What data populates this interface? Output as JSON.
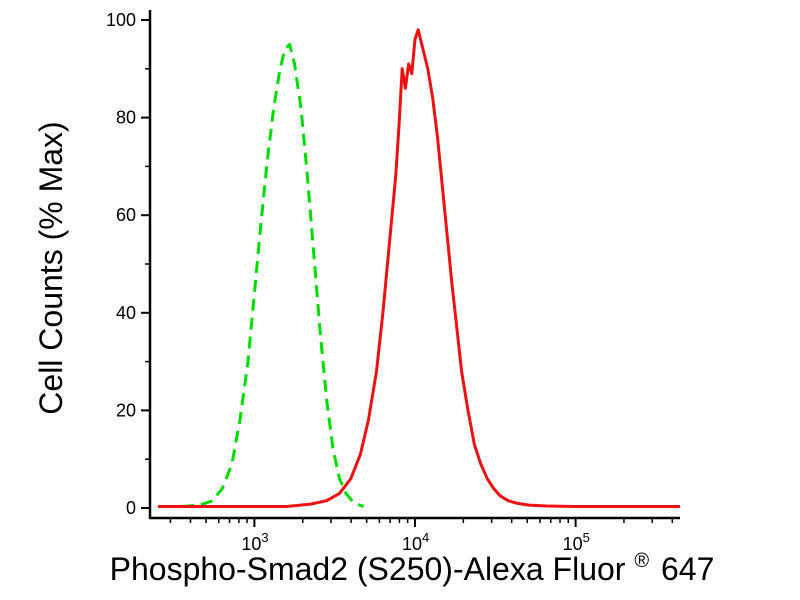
{
  "page": {
    "background": "#ffffff"
  },
  "chart_data": {
    "type": "line",
    "chart_kind": "flow-cytometry-overlay-histogram",
    "title": "",
    "xlabel": "Phospho-Smad2 (S250)-Alexa Fluor® 647",
    "xlabel_main": "Phospho-Smad2 (S250)-Alexa Fluor",
    "xlabel_registered": "®",
    "xlabel_suffix": "647",
    "ylabel": "Cell Counts (% Max)",
    "x_scale": "log10",
    "x_range_log10": [
      2.35,
      5.65
    ],
    "x_major_tick_exponents": [
      3,
      4,
      5
    ],
    "ylim": [
      0,
      100
    ],
    "y_major_ticks": [
      0,
      20,
      40,
      60,
      80,
      100
    ],
    "y_minor_ticks": [
      10,
      30,
      50,
      70,
      90
    ],
    "grid": "off",
    "legend": "none",
    "axis_color": "#000000",
    "series": [
      {
        "name": "green-dashed",
        "color": "#00dd00",
        "line_style": "dashed",
        "peak_log10x": 3.22,
        "peak_y": 95,
        "points": [
          [
            2.55,
            0.3
          ],
          [
            2.66,
            0.6
          ],
          [
            2.74,
            1.5
          ],
          [
            2.8,
            4
          ],
          [
            2.86,
            9
          ],
          [
            2.91,
            18
          ],
          [
            2.96,
            30
          ],
          [
            3.0,
            44
          ],
          [
            3.04,
            58
          ],
          [
            3.08,
            71
          ],
          [
            3.12,
            82
          ],
          [
            3.16,
            90
          ],
          [
            3.19,
            94
          ],
          [
            3.22,
            95
          ],
          [
            3.25,
            91
          ],
          [
            3.29,
            82
          ],
          [
            3.33,
            68
          ],
          [
            3.37,
            52
          ],
          [
            3.41,
            36
          ],
          [
            3.45,
            22
          ],
          [
            3.49,
            12
          ],
          [
            3.53,
            6
          ],
          [
            3.57,
            3
          ],
          [
            3.62,
            1
          ],
          [
            3.68,
            0.3
          ]
        ]
      },
      {
        "name": "red-solid",
        "color": "#ee1111",
        "line_style": "solid",
        "peak_log10x": 4.02,
        "peak_y": 98,
        "points": [
          [
            2.4,
            0.3
          ],
          [
            3.2,
            0.3
          ],
          [
            3.35,
            0.8
          ],
          [
            3.45,
            1.5
          ],
          [
            3.53,
            3
          ],
          [
            3.6,
            6
          ],
          [
            3.66,
            11
          ],
          [
            3.71,
            18
          ],
          [
            3.76,
            28
          ],
          [
            3.8,
            40
          ],
          [
            3.84,
            54
          ],
          [
            3.88,
            68
          ],
          [
            3.9,
            78
          ],
          [
            3.92,
            90
          ],
          [
            3.94,
            86
          ],
          [
            3.96,
            91
          ],
          [
            3.98,
            89
          ],
          [
            4.0,
            96
          ],
          [
            4.02,
            98
          ],
          [
            4.05,
            94
          ],
          [
            4.08,
            90
          ],
          [
            4.11,
            84
          ],
          [
            4.14,
            76
          ],
          [
            4.17,
            66
          ],
          [
            4.2,
            56
          ],
          [
            4.23,
            46
          ],
          [
            4.26,
            37
          ],
          [
            4.29,
            28
          ],
          [
            4.33,
            20
          ],
          [
            4.37,
            13
          ],
          [
            4.41,
            9
          ],
          [
            4.45,
            6
          ],
          [
            4.49,
            4
          ],
          [
            4.53,
            2.5
          ],
          [
            4.58,
            1.5
          ],
          [
            4.63,
            1
          ],
          [
            4.71,
            0.6
          ],
          [
            4.82,
            0.4
          ],
          [
            5.0,
            0.3
          ],
          [
            5.65,
            0.3
          ]
        ]
      }
    ]
  }
}
